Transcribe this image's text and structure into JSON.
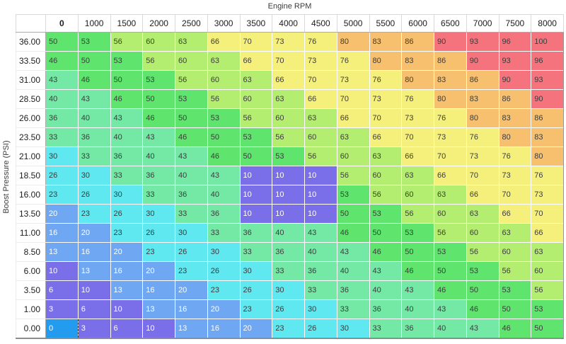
{
  "axis": {
    "x_title": "Engine RPM",
    "y_title": "Boost Pressure (PSI)"
  },
  "table": {
    "columns": [
      "0",
      "1000",
      "1500",
      "2000",
      "2500",
      "3000",
      "3500",
      "4000",
      "4500",
      "5000",
      "5500",
      "6000",
      "6500",
      "7000",
      "7500",
      "8000"
    ],
    "rows": [
      {
        "label": "36.00",
        "values": [
          50,
          53,
          56,
          60,
          63,
          66,
          70,
          73,
          76,
          80,
          83,
          86,
          90,
          93,
          96,
          100
        ]
      },
      {
        "label": "33.50",
        "values": [
          46,
          50,
          53,
          56,
          60,
          63,
          66,
          70,
          73,
          76,
          80,
          83,
          86,
          90,
          93,
          96
        ]
      },
      {
        "label": "31.00",
        "values": [
          43,
          46,
          50,
          53,
          56,
          60,
          63,
          66,
          70,
          73,
          76,
          80,
          83,
          86,
          90,
          93
        ]
      },
      {
        "label": "28.50",
        "values": [
          40,
          43,
          46,
          50,
          53,
          56,
          60,
          63,
          66,
          70,
          73,
          76,
          80,
          83,
          86,
          90
        ]
      },
      {
        "label": "26.00",
        "values": [
          36,
          40,
          43,
          46,
          50,
          53,
          56,
          60,
          63,
          66,
          70,
          73,
          76,
          80,
          83,
          86
        ]
      },
      {
        "label": "23.50",
        "values": [
          33,
          36,
          40,
          43,
          46,
          50,
          53,
          56,
          60,
          63,
          66,
          70,
          73,
          76,
          80,
          83
        ]
      },
      {
        "label": "21.00",
        "values": [
          30,
          33,
          36,
          40,
          43,
          46,
          50,
          53,
          56,
          60,
          63,
          66,
          70,
          73,
          76,
          80
        ]
      },
      {
        "label": "18.50",
        "values": [
          26,
          30,
          33,
          36,
          40,
          43,
          10,
          10,
          10,
          56,
          60,
          63,
          66,
          70,
          73,
          76
        ]
      },
      {
        "label": "16.00",
        "values": [
          23,
          26,
          30,
          33,
          36,
          40,
          10,
          10,
          10,
          53,
          56,
          60,
          63,
          66,
          70,
          73
        ]
      },
      {
        "label": "13.50",
        "values": [
          20,
          23,
          26,
          30,
          33,
          36,
          10,
          10,
          10,
          50,
          53,
          56,
          60,
          63,
          66,
          70
        ]
      },
      {
        "label": "11.00",
        "values": [
          16,
          20,
          23,
          26,
          30,
          33,
          36,
          40,
          43,
          46,
          50,
          53,
          56,
          60,
          63,
          66
        ]
      },
      {
        "label": "8.50",
        "values": [
          13,
          16,
          20,
          23,
          26,
          30,
          33,
          36,
          40,
          43,
          46,
          50,
          53,
          56,
          60,
          63
        ]
      },
      {
        "label": "6.00",
        "values": [
          10,
          13,
          16,
          20,
          23,
          26,
          30,
          33,
          36,
          40,
          43,
          46,
          50,
          53,
          56,
          60
        ]
      },
      {
        "label": "3.50",
        "values": [
          6,
          10,
          13,
          16,
          20,
          23,
          26,
          30,
          33,
          36,
          40,
          43,
          46,
          50,
          53,
          56
        ]
      },
      {
        "label": "1.00",
        "values": [
          3,
          6,
          10,
          13,
          16,
          20,
          23,
          26,
          30,
          33,
          36,
          40,
          43,
          46,
          50,
          53
        ]
      },
      {
        "label": "0.00",
        "values": [
          0,
          3,
          6,
          10,
          13,
          16,
          20,
          23,
          26,
          30,
          33,
          36,
          40,
          43,
          46,
          50
        ]
      }
    ],
    "selected": {
      "row": "0.00",
      "column": "0",
      "value": 0
    }
  },
  "colors": {
    "bands": [
      {
        "max": 10,
        "hex": "#7B6EE9"
      },
      {
        "max": 20,
        "hex": "#6FA7F2"
      },
      {
        "max": 30,
        "hex": "#5FE8EF"
      },
      {
        "max": 43,
        "hex": "#74E9A6"
      },
      {
        "max": 53,
        "hex": "#5FE56E"
      },
      {
        "max": 63,
        "hex": "#B4EE70"
      },
      {
        "max": 76,
        "hex": "#F5F07B"
      },
      {
        "max": 86,
        "hex": "#F7C06E"
      },
      {
        "max": 100,
        "hex": "#F4737C"
      }
    ],
    "selected_cell_bg": "#239CEF",
    "text_dark": "#3C3C3C",
    "text_light": "#FFFFFF",
    "light_text_max": 20
  }
}
